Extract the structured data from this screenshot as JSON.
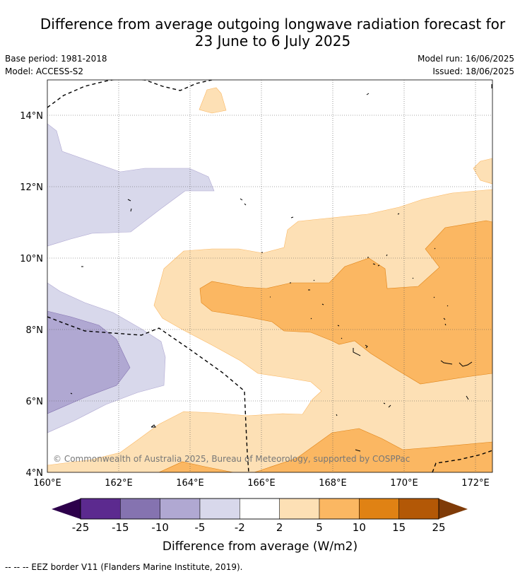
{
  "title_line1": "Difference from average outgoing longwave radiation forecast for",
  "title_line2": "23 June to 6 July 2025",
  "base_period": "Base period: 1981-2018",
  "model": "Model: ACCESS-S2",
  "model_run": "Model run: 16/06/2025",
  "issued": "Issued: 18/06/2025",
  "copyright": "© Commonwealth of Australia 2025, Bureau of Meteorology, supported by COSPPac",
  "lat_labels": [
    "14°N",
    "12°N",
    "10°N",
    "8°N",
    "6°N",
    "4°N"
  ],
  "lon_labels": [
    "160°E",
    "162°E",
    "164°E",
    "166°E",
    "168°E",
    "170°E",
    "172°E"
  ],
  "colorbar": {
    "ticks": [
      "-25",
      "-15",
      "-10",
      "-5",
      "-2",
      "2",
      "5",
      "10",
      "15",
      "25"
    ],
    "label": "Difference from average (W/m2)",
    "colors": [
      "#2d004b",
      "#5c2a8f",
      "#8573b0",
      "#b0a8d2",
      "#d8d8eb",
      "#ffffff",
      "#fde0b5",
      "#fbb762",
      "#e08214",
      "#b35806",
      "#7f3b08"
    ]
  },
  "legend_eez": "--  --  -- EEZ border V11 (Flanders Marine Institute, 2019)."
}
